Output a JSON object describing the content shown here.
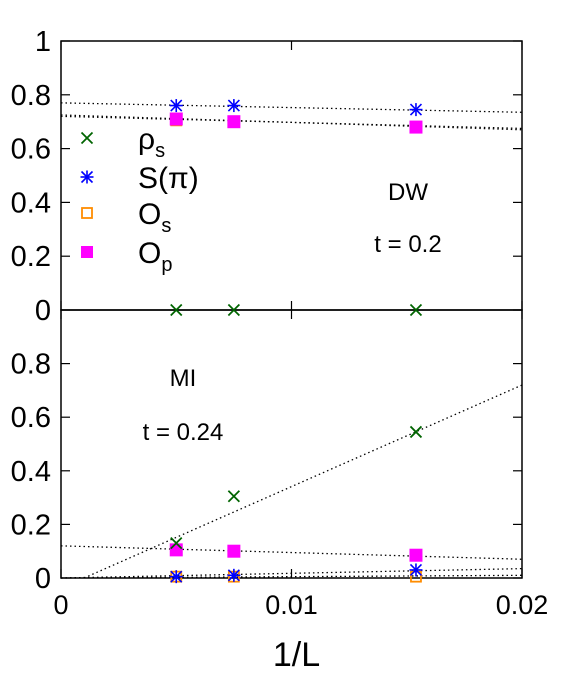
{
  "chart_data": [
    {
      "type": "scatter",
      "panel": "top",
      "xlabel": "",
      "ylabel": "",
      "xlim": [
        0,
        0.02
      ],
      "ylim": [
        0,
        1
      ],
      "yticks": [
        "0",
        "0.2",
        "0.4",
        "0.6",
        "0.8",
        "1"
      ],
      "grid": false,
      "legend_position": "left",
      "legend": [
        {
          "key": "rho",
          "base": "ρ",
          "sub": "s",
          "color": "#006400",
          "marker": "x"
        },
        {
          "key": "S",
          "base": "S(π)",
          "sub": "",
          "color": "#0000ff",
          "marker": "star"
        },
        {
          "key": "Os",
          "base": "O",
          "sub": "s",
          "color": "#ff8c00",
          "marker": "open-square"
        },
        {
          "key": "Op",
          "base": "O",
          "sub": "p",
          "color": "#ff00ff",
          "marker": "filled-square"
        }
      ],
      "annotations": [
        {
          "key": "phase",
          "text": "DW"
        },
        {
          "key": "param",
          "text": "t = 0.2"
        }
      ],
      "series": [
        {
          "key": "rho",
          "x": [
            0.005,
            0.0075,
            0.0154
          ],
          "y": [
            0,
            0,
            0
          ]
        },
        {
          "key": "S",
          "x": [
            0.005,
            0.0075,
            0.0154
          ],
          "y": [
            0.76,
            0.76,
            0.745
          ]
        },
        {
          "key": "Os",
          "x": [
            0.005,
            0.0075,
            0.0154
          ],
          "y": [
            0.705,
            0.7,
            0.68
          ]
        },
        {
          "key": "Op",
          "x": [
            0.005,
            0.0075,
            0.0154
          ],
          "y": [
            0.71,
            0.7,
            0.68
          ]
        }
      ],
      "fit_lines": [
        {
          "x": [
            0,
            0.02
          ],
          "y": [
            0.77,
            0.735
          ]
        },
        {
          "x": [
            0,
            0.02
          ],
          "y": [
            0.725,
            0.67
          ]
        },
        {
          "x": [
            0,
            0.02
          ],
          "y": [
            0.72,
            0.675
          ]
        }
      ]
    },
    {
      "type": "scatter",
      "panel": "bottom",
      "xlabel": "1/L",
      "ylabel": "",
      "xlim": [
        0,
        0.02
      ],
      "ylim": [
        0,
        1
      ],
      "xticks": [
        "0",
        "0.01",
        "0.02"
      ],
      "yticks": [
        "0",
        "0.2",
        "0.4",
        "0.6",
        "0.8"
      ],
      "grid": false,
      "annotations": [
        {
          "key": "phase",
          "text": "MI"
        },
        {
          "key": "param",
          "text": "t = 0.24"
        }
      ],
      "series": [
        {
          "key": "rho",
          "x": [
            0.005,
            0.0075,
            0.0154
          ],
          "y": [
            0.13,
            0.305,
            0.545
          ]
        },
        {
          "key": "S",
          "x": [
            0.005,
            0.0075,
            0.0154
          ],
          "y": [
            0.005,
            0.01,
            0.03
          ]
        },
        {
          "key": "Os",
          "x": [
            0.005,
            0.0075,
            0.0154
          ],
          "y": [
            0.005,
            0.005,
            0.005
          ]
        },
        {
          "key": "Op",
          "x": [
            0.005,
            0.0075,
            0.0154
          ],
          "y": [
            0.105,
            0.1,
            0.085
          ]
        }
      ],
      "fit_lines": [
        {
          "x": [
            0.001,
            0.02
          ],
          "y": [
            0,
            0.72
          ]
        },
        {
          "x": [
            0,
            0.02
          ],
          "y": [
            0.12,
            0.07
          ]
        },
        {
          "x": [
            0,
            0.02
          ],
          "y": [
            0,
            0.035
          ]
        },
        {
          "x": [
            0,
            0.02
          ],
          "y": [
            0,
            0.01
          ]
        }
      ]
    }
  ]
}
